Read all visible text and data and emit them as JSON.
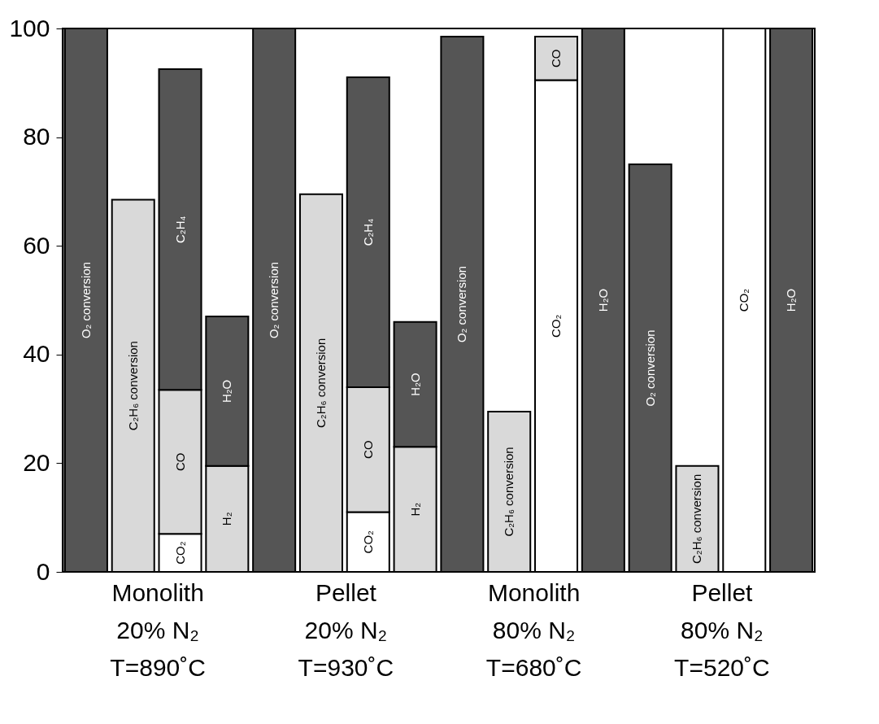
{
  "chart_data": {
    "type": "bar",
    "stacked": true,
    "categories": [
      null,
      null,
      null,
      null,
      null,
      null,
      null,
      null,
      null,
      null,
      null,
      null,
      null,
      null,
      null,
      null
    ],
    "annotations": [
      "Monolith\n20% N₂\nT=890˚C",
      "Pellet\n20% N₂\nT=930˚C",
      "Monolith\n80% N₂\nT=680˚C",
      "Pellet\n80% N₂\nT=520˚C"
    ],
    "series": [
      {
        "name": "O₂ conversion",
        "color": "#555555",
        "values": [
          100,
          null,
          null,
          null,
          100,
          null,
          null,
          null,
          98.5,
          null,
          null,
          null,
          75,
          null,
          null,
          null
        ]
      },
      {
        "name": "C₂H₆ conversion",
        "color": "#d9d9d9",
        "values": [
          null,
          68.5,
          null,
          null,
          null,
          69.5,
          null,
          null,
          null,
          29.5,
          null,
          null,
          null,
          19.5,
          null,
          null
        ]
      },
      {
        "name": "CO₂",
        "color": "#ffffff",
        "values": [
          null,
          null,
          7,
          null,
          null,
          null,
          11,
          null,
          null,
          null,
          90.5,
          null,
          null,
          null,
          100,
          null
        ]
      },
      {
        "name": "CO",
        "color": "#d9d9d9",
        "values": [
          null,
          null,
          26.5,
          null,
          null,
          null,
          23,
          null,
          null,
          null,
          8,
          null,
          null,
          null,
          null,
          null
        ]
      },
      {
        "name": "C₂H₄",
        "color": "#555555",
        "values": [
          null,
          null,
          59,
          null,
          null,
          null,
          57,
          null,
          null,
          null,
          null,
          null,
          null,
          null,
          null,
          null
        ]
      },
      {
        "name": "H₂",
        "color": "#d9d9d9",
        "values": [
          null,
          null,
          null,
          19.5,
          null,
          null,
          null,
          23,
          null,
          null,
          null,
          null,
          null,
          null,
          null,
          null
        ]
      },
      {
        "name": "H₂O",
        "color": "#555555",
        "values": [
          null,
          null,
          null,
          27.5,
          null,
          null,
          null,
          23,
          null,
          null,
          null,
          100,
          null,
          null,
          null,
          100
        ]
      }
    ],
    "ylim": [
      0,
      100
    ],
    "yticks": [
      0,
      20,
      40,
      60,
      80,
      100
    ],
    "grid": false,
    "legend": false
  }
}
